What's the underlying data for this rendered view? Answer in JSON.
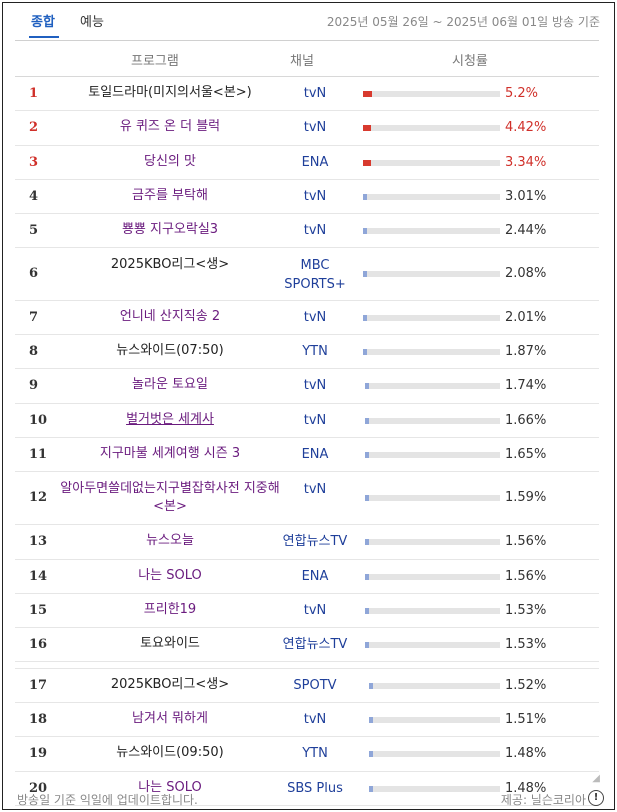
{
  "tabs": [
    {
      "label": "종합"
    },
    {
      "label": "예능"
    }
  ],
  "period": "2025년 05월 26일 ~ 2025년 06월 01일 방송 기준",
  "headers": {
    "program": "프로그램",
    "channel": "채널",
    "rating": "시청률"
  },
  "rows": [
    {
      "rank": "1",
      "program": "토일드라마(미지의서울<본>)",
      "channel": "tvN",
      "rating": "5.2%",
      "value": 5.2
    },
    {
      "rank": "2",
      "program": "유 퀴즈 온 더 블럭",
      "channel": "tvN",
      "rating": "4.42%",
      "value": 4.42
    },
    {
      "rank": "3",
      "program": "당신의 맛",
      "channel": "ENA",
      "rating": "3.34%",
      "value": 3.34
    },
    {
      "rank": "4",
      "program": "금주를 부탁해",
      "channel": "tvN",
      "rating": "3.01%",
      "value": 3.01
    },
    {
      "rank": "5",
      "program": "뿅뿅 지구오락실3",
      "channel": "tvN",
      "rating": "2.44%",
      "value": 2.44
    },
    {
      "rank": "6",
      "program": "2025KBO리그<생>",
      "channel": "MBC SPORTS+",
      "rating": "2.08%",
      "value": 2.08
    },
    {
      "rank": "7",
      "program": "언니네 산지직송 2",
      "channel": "tvN",
      "rating": "2.01%",
      "value": 2.01
    },
    {
      "rank": "8",
      "program": "뉴스와이드(07:50)",
      "channel": "YTN",
      "rating": "1.87%",
      "value": 1.87
    },
    {
      "rank": "9",
      "program": "놀라운 토요일",
      "channel": "tvN",
      "rating": "1.74%",
      "value": 1.74
    },
    {
      "rank": "10",
      "program": "벌거벗은 세계사",
      "channel": "tvN",
      "rating": "1.66%",
      "value": 1.66
    },
    {
      "rank": "11",
      "program": "지구마불 세계여행 시즌 3",
      "channel": "ENA",
      "rating": "1.65%",
      "value": 1.65
    },
    {
      "rank": "12",
      "program": "알아두면쓸데없는지구별잡학사전 지중해<본>",
      "channel": "tvN",
      "rating": "1.59%",
      "value": 1.59
    },
    {
      "rank": "13",
      "program": "뉴스오늘",
      "channel": "연합뉴스TV",
      "rating": "1.56%",
      "value": 1.56
    },
    {
      "rank": "14",
      "program": "나는 SOLO",
      "channel": "ENA",
      "rating": "1.56%",
      "value": 1.56
    },
    {
      "rank": "15",
      "program": "프리한19",
      "channel": "tvN",
      "rating": "1.53%",
      "value": 1.53
    },
    {
      "rank": "16",
      "program": "토요와이드",
      "channel": "연합뉴스TV",
      "rating": "1.53%",
      "value": 1.53
    },
    {
      "rank": "17",
      "program": "2025KBO리그<생>",
      "channel": "SPOTV",
      "rating": "1.52%",
      "value": 1.52
    },
    {
      "rank": "18",
      "program": "남겨서 뭐하게",
      "channel": "tvN",
      "rating": "1.51%",
      "value": 1.51
    },
    {
      "rank": "19",
      "program": "뉴스와이드(09:50)",
      "channel": "YTN",
      "rating": "1.48%",
      "value": 1.48
    },
    {
      "rank": "20",
      "program": "나는 SOLO",
      "channel": "SBS Plus",
      "rating": "1.48%",
      "value": 1.48
    }
  ],
  "footer": {
    "note": "방송일 기준 익일에 업데이트합니다.",
    "provider": "제공: 닐슨코리아",
    "info_icon": "!"
  },
  "colors": {
    "top_rank": "#d0302a",
    "program": "#6a1b7e",
    "channel": "#1f3f9a",
    "bar": "#8fa6d8",
    "bar_top": "#d83a2e"
  }
}
